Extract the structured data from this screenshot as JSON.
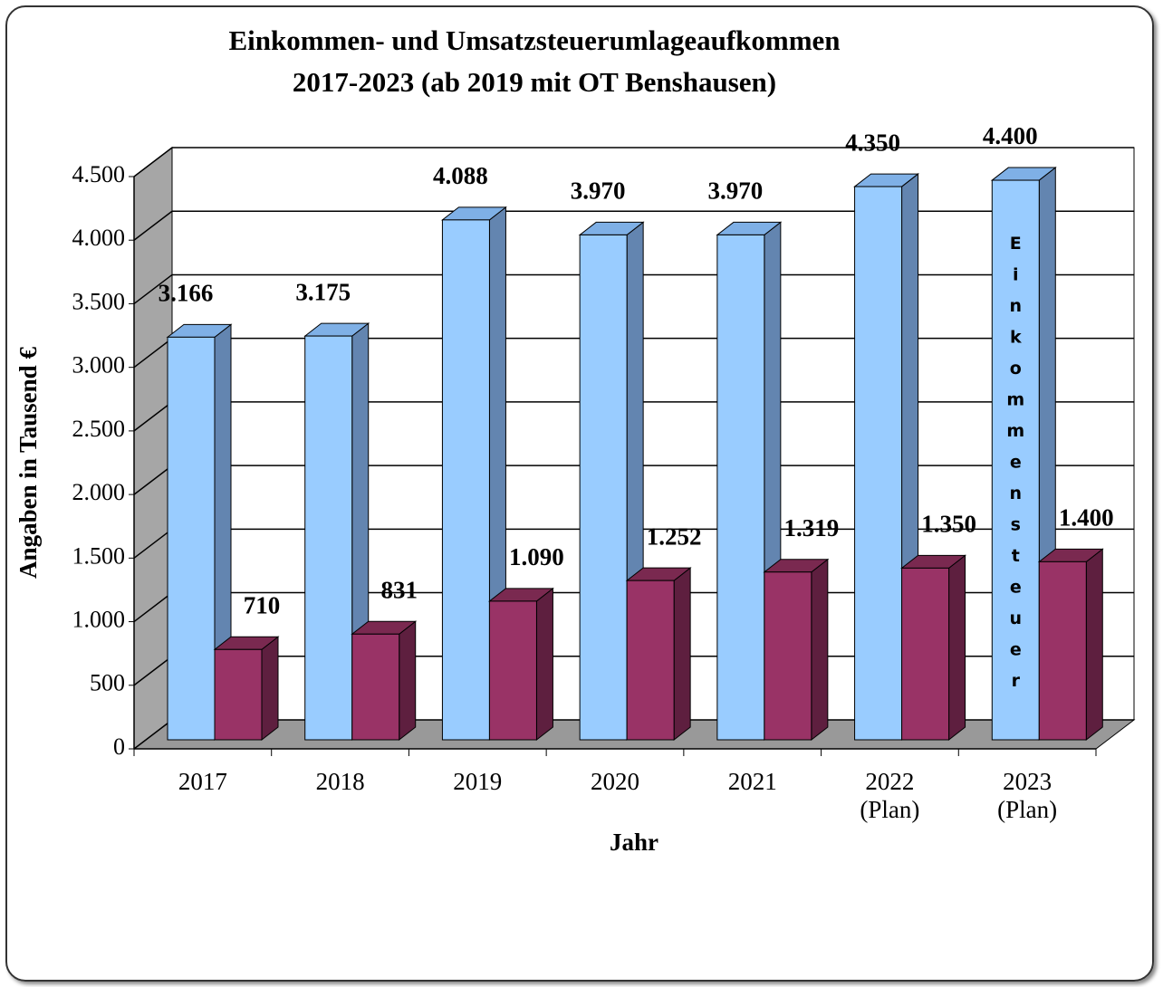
{
  "chart_data": {
    "type": "bar3d",
    "title": [
      "Einkommen- und Umsatzsteuerumlageaufkommen",
      "2017-2023 (ab 2019 mit OT Benshausen)"
    ],
    "ylabel": "Angaben in Tausend €",
    "xlabel": "Jahr",
    "categories": [
      "2017",
      "2018",
      "2019",
      "2020",
      "2021",
      "2022 (Plan)",
      "2023 (Plan)"
    ],
    "series": [
      {
        "name": "Einkommensteuer",
        "color": "#99ccff",
        "values": [
          3166,
          3175,
          4088,
          3970,
          3970,
          4350,
          4400
        ],
        "value_labels": [
          "3.166",
          "3.175",
          "4.088",
          "3.970",
          "3.970",
          "4.350",
          "4.400"
        ]
      },
      {
        "color": "#993366",
        "values": [
          710,
          831,
          1090,
          1252,
          1319,
          1350,
          1400
        ],
        "value_labels": [
          "710",
          "831",
          "1.090",
          "1.252",
          "1.319",
          "1.350",
          "1.400"
        ]
      }
    ],
    "ylim": [
      0,
      4500
    ],
    "yticks": [
      0,
      500,
      {
        "value": 1000,
        "label": "1.000"
      },
      {
        "value": 1500,
        "label": "1.500"
      },
      {
        "value": 2000,
        "label": "2.000"
      },
      {
        "value": 2500,
        "label": "2.500"
      },
      {
        "value": 3000,
        "label": "3.000"
      },
      {
        "value": 3500,
        "label": "3.500"
      },
      {
        "value": 4000,
        "label": "4.000"
      },
      {
        "value": 4500,
        "label": "4.500"
      }
    ],
    "grid": true
  }
}
